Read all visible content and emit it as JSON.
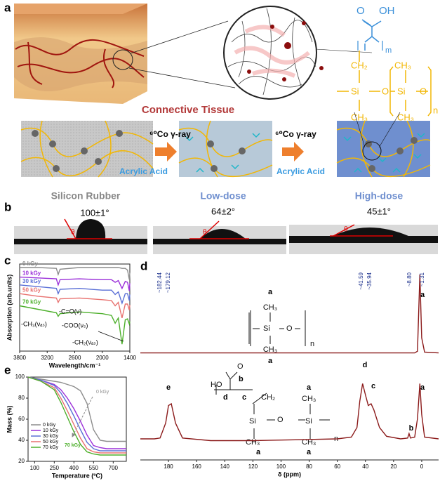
{
  "panel_labels": [
    "a",
    "b",
    "c",
    "d",
    "e"
  ],
  "panel_a": {
    "caption": "Connective Tissue",
    "process": [
      "⁶⁰Co γ-ray",
      "Acrylic Acid"
    ],
    "stages": [
      "Silicon Rubber",
      "Low-dose",
      "High-dose"
    ],
    "structure": {
      "carbonyl": "O",
      "acid": "OH",
      "m": "m",
      "ch2": "CH₂",
      "ch3": "CH₃",
      "si": "Si",
      "o": "O",
      "n": "n"
    }
  },
  "panel_b": {
    "angles": [
      "100±1°",
      "64±2°",
      "45±1°"
    ],
    "theta": "θ"
  },
  "panel_d_structures": {
    "top": {
      "a": "a",
      "ch3": "CH₃",
      "si": "Si",
      "o": "O",
      "n": "n"
    },
    "bottom": {
      "ho": "HO",
      "o": "O",
      "b": "b",
      "c": "c",
      "d": "d",
      "a": "a",
      "ch2": "CH₂",
      "ch3": "CH₃",
      "si": "Si",
      "n": "n"
    }
  },
  "chart_data": [
    {
      "type": "line",
      "x_label": "Wavelength/cm⁻¹",
      "y_label": "Absorption (arb.units)",
      "x": [
        3800,
        3400,
        3000,
        2960,
        2920,
        2500,
        2000,
        1800,
        1720,
        1650,
        1570,
        1500,
        1450,
        1410,
        1400
      ],
      "xlim": [
        3800,
        1400
      ],
      "xticks": [
        3800,
        3200,
        2600,
        2000,
        1400
      ],
      "ylim": [
        0,
        10
      ],
      "series": [
        {
          "name": "0 kGy",
          "color": "#8c8c8c",
          "values": [
            9.6,
            9.6,
            9.5,
            8.8,
            9.4,
            9.6,
            9.6,
            9.6,
            9.6,
            9.6,
            9.5,
            9.5,
            9.3,
            8.2,
            9.0
          ]
        },
        {
          "name": "10 kGy",
          "color": "#9b30d9",
          "values": [
            8.5,
            8.4,
            8.3,
            7.6,
            8.2,
            8.3,
            8.2,
            8.2,
            7.9,
            8.1,
            7.2,
            8.0,
            7.9,
            6.9,
            7.8
          ]
        },
        {
          "name": "30 kGy",
          "color": "#5a6fd6",
          "values": [
            7.6,
            7.4,
            7.2,
            6.6,
            7.1,
            7.2,
            7.0,
            7.0,
            6.5,
            6.8,
            5.5,
            6.6,
            6.6,
            5.8,
            6.5
          ]
        },
        {
          "name": "50 kGy",
          "color": "#e8716f",
          "values": [
            6.6,
            6.3,
            6.1,
            5.6,
            6.0,
            6.1,
            5.9,
            5.8,
            5.2,
            5.6,
            3.8,
            5.4,
            5.4,
            4.7,
            5.3
          ]
        },
        {
          "name": "70 kGy",
          "color": "#4caf2a",
          "values": [
            5.2,
            4.8,
            4.4,
            4.0,
            4.3,
            4.5,
            4.3,
            4.1,
            3.2,
            3.8,
            0.8,
            3.6,
            3.7,
            3.1,
            3.4
          ]
        }
      ],
      "annotations": [
        "-CH₃(νₐₛ)",
        "-C=O(ν)",
        "-COO(νₛ)",
        "-CH₂(νₐₛ)"
      ]
    },
    {
      "type": "line",
      "x_label": "δ (ppm)",
      "x": [
        200,
        190,
        186,
        182,
        180,
        178,
        175,
        170,
        150,
        120,
        90,
        60,
        50,
        46,
        44,
        42,
        40,
        38,
        36,
        34,
        30,
        25,
        15,
        10,
        9,
        8,
        5,
        3,
        1.3,
        0,
        -2,
        -12
      ],
      "xlim": [
        200,
        -12
      ],
      "xticks": [
        180,
        160,
        140,
        120,
        100,
        80,
        60,
        40,
        20,
        0
      ],
      "ylim": [
        0,
        100
      ],
      "series": [
        {
          "color": "#8b1a1a",
          "values": [
            2,
            2,
            2,
            2,
            2,
            2,
            2,
            2,
            2,
            2,
            2,
            2,
            2,
            2,
            2,
            2,
            2,
            2,
            2,
            2,
            2,
            2,
            2,
            2,
            2,
            2,
            2,
            4,
            95,
            20,
            3,
            2
          ]
        },
        {
          "color": "#8b1a1a",
          "values": [
            12,
            12,
            13,
            30,
            50,
            52,
            30,
            13,
            10,
            10,
            11,
            12,
            14,
            25,
            55,
            75,
            62,
            50,
            52,
            45,
            25,
            15,
            12,
            13,
            18,
            13,
            14,
            35,
            75,
            40,
            14,
            12
          ]
        }
      ],
      "annotations": [
        "~182.44",
        "~179.12",
        "~41.59",
        "~35.94",
        "~8.80",
        "~1.31"
      ],
      "peak_letters": [
        "a",
        "e",
        "d",
        "c",
        "b",
        "a"
      ]
    },
    {
      "type": "line",
      "x_label": "Temperature (ºC)",
      "y_label": "Mass (%)",
      "x": [
        50,
        150,
        250,
        300,
        350,
        400,
        450,
        500,
        550,
        600,
        650,
        700,
        800
      ],
      "xlim": [
        50,
        800
      ],
      "xticks": [
        100,
        250,
        400,
        550,
        700
      ],
      "ylim": [
        20,
        100
      ],
      "yticks": [
        20,
        40,
        60,
        80,
        100
      ],
      "series": [
        {
          "name": "0 kGy",
          "color": "#8c8c8c",
          "values": [
            100,
            98,
            96,
            95,
            93,
            91,
            87,
            75,
            50,
            40,
            39,
            39,
            39
          ]
        },
        {
          "name": "10 kGy",
          "color": "#9b30d9",
          "values": [
            100,
            97,
            93,
            88,
            80,
            70,
            58,
            45,
            35,
            33,
            32,
            32,
            32
          ]
        },
        {
          "name": "30 kGy",
          "color": "#5a6fd6",
          "values": [
            100,
            97,
            92,
            85,
            75,
            63,
            50,
            38,
            32,
            30,
            30,
            30,
            30
          ]
        },
        {
          "name": "50 kGy",
          "color": "#e8716f",
          "values": [
            100,
            96,
            90,
            80,
            68,
            55,
            42,
            32,
            29,
            28,
            28,
            28,
            28
          ]
        },
        {
          "name": "70 kGy",
          "color": "#4caf2a",
          "values": [
            100,
            96,
            88,
            76,
            62,
            48,
            36,
            29,
            27,
            26,
            26,
            26,
            26
          ]
        }
      ]
    }
  ]
}
